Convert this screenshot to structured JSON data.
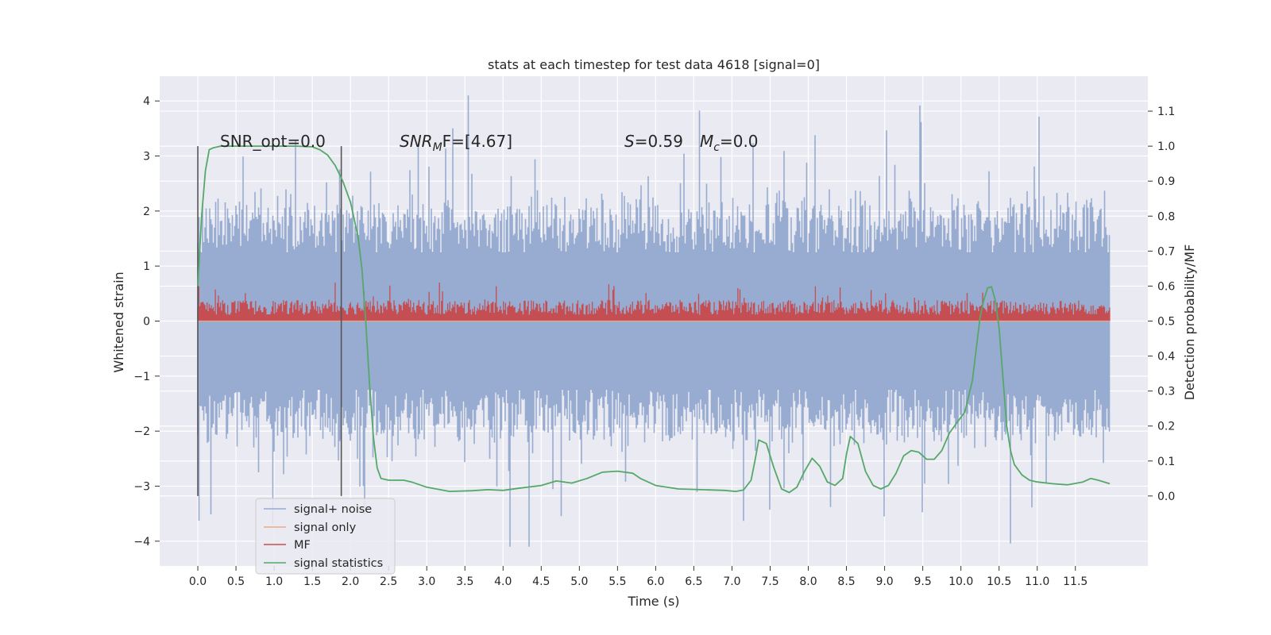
{
  "chart_data": {
    "type": "line",
    "title": "stats at each timestep for test data 4618 [signal=0]",
    "xlabel": "Time (s)",
    "ylabel_left": "Whitened strain",
    "ylabel_right": "Detection probability/MF",
    "xlim": [
      -0.5,
      12.45
    ],
    "ylim_left": [
      -4.45,
      4.45
    ],
    "ylim_right": [
      -0.2,
      1.2
    ],
    "x_ticks": [
      0.0,
      0.5,
      1.0,
      1.5,
      2.0,
      2.5,
      3.0,
      3.5,
      4.0,
      4.5,
      5.0,
      5.5,
      6.0,
      6.5,
      7.0,
      7.5,
      8.0,
      8.5,
      9.0,
      9.5,
      10.0,
      10.5,
      11.0,
      11.5
    ],
    "x_tick_labels": [
      "0.0",
      "0.5",
      "1.0",
      "1.5",
      "2.0",
      "2.5",
      "3.0",
      "3.5",
      "4.0",
      "4.5",
      "5.0",
      "5.5",
      "6.0",
      "6.5",
      "7.0",
      "7.5",
      "8.0",
      "8.5",
      "9.0",
      "9.5",
      "10.0",
      "10.5",
      "11.0",
      "11.5"
    ],
    "y_left_ticks": [
      -4,
      -3,
      -2,
      -1,
      0,
      1,
      2,
      3,
      4
    ],
    "y_left_tick_labels": [
      "−4",
      "−3",
      "−2",
      "−1",
      "0",
      "1",
      "2",
      "3",
      "4"
    ],
    "y_right_ticks": [
      0.0,
      0.1,
      0.2,
      0.3,
      0.4,
      0.5,
      0.6,
      0.7,
      0.8,
      0.9,
      1.0,
      1.1
    ],
    "y_right_tick_labels": [
      "0.0",
      "0.1",
      "0.2",
      "0.3",
      "0.4",
      "0.5",
      "0.6",
      "0.7",
      "0.8",
      "0.9",
      "1.0",
      "1.1"
    ],
    "grid": true,
    "legend_position": "lower-left",
    "annotations": {
      "snr_opt": "SNR_opt=0.0",
      "snr_mf_main": "SNR",
      "snr_mf_sub": "M",
      "snr_mf_rest": "F=[4.67]",
      "s_sym": "S",
      "s_rest": "=0.59",
      "mc_main": "M",
      "mc_sub": "c",
      "mc_rest": "=0.0"
    },
    "vertical_markers": [
      0.0,
      1.88
    ],
    "series": [
      {
        "name": "signal+ noise",
        "axis": "left",
        "color": "#98abd0",
        "description_kind": "noise-band",
        "t_range": [
          0.0,
          11.95
        ],
        "typical_range": [
          -2.0,
          2.0
        ],
        "extreme_range": [
          -4.1,
          4.1
        ]
      },
      {
        "name": "signal only",
        "axis": "left",
        "color": "#eaa987",
        "t": [
          0.0,
          11.95
        ],
        "values": [
          0.0,
          0.0
        ]
      },
      {
        "name": "MF",
        "axis": "right",
        "color": "#c44e52",
        "description_kind": "noise-band",
        "t_range": [
          0.0,
          11.95
        ],
        "typical_range": [
          0.5,
          0.56
        ],
        "extreme_range": [
          0.5,
          0.61
        ]
      },
      {
        "name": "signal statistics",
        "axis": "right",
        "color": "#55a868",
        "t": [
          0.0,
          0.05,
          0.1,
          0.15,
          0.2,
          0.3,
          0.5,
          0.8,
          1.0,
          1.3,
          1.5,
          1.6,
          1.7,
          1.8,
          1.9,
          2.0,
          2.1,
          2.15,
          2.2,
          2.25,
          2.3,
          2.35,
          2.4,
          2.5,
          2.7,
          2.8,
          3.0,
          3.3,
          3.6,
          3.8,
          4.0,
          4.2,
          4.5,
          4.7,
          4.9,
          5.1,
          5.3,
          5.5,
          5.7,
          5.8,
          6.0,
          6.3,
          6.6,
          6.9,
          7.05,
          7.15,
          7.25,
          7.3,
          7.35,
          7.45,
          7.55,
          7.65,
          7.75,
          7.85,
          7.95,
          8.05,
          8.15,
          8.25,
          8.35,
          8.45,
          8.5,
          8.55,
          8.65,
          8.75,
          8.85,
          8.95,
          9.05,
          9.15,
          9.25,
          9.35,
          9.45,
          9.55,
          9.65,
          9.75,
          9.85,
          9.95,
          10.05,
          10.15,
          10.2,
          10.25,
          10.3,
          10.35,
          10.4,
          10.45,
          10.5,
          10.55,
          10.6,
          10.65,
          10.7,
          10.8,
          10.9,
          11.0,
          11.2,
          11.4,
          11.6,
          11.7,
          11.8,
          11.95
        ],
        "values": [
          0.6,
          0.8,
          0.93,
          0.99,
          0.995,
          1.0,
          1.0,
          1.0,
          1.0,
          1.0,
          0.998,
          0.99,
          0.975,
          0.945,
          0.9,
          0.84,
          0.74,
          0.65,
          0.5,
          0.32,
          0.17,
          0.08,
          0.05,
          0.045,
          0.045,
          0.04,
          0.025,
          0.013,
          0.015,
          0.018,
          0.016,
          0.022,
          0.03,
          0.043,
          0.037,
          0.05,
          0.068,
          0.071,
          0.065,
          0.05,
          0.03,
          0.02,
          0.018,
          0.016,
          0.013,
          0.017,
          0.045,
          0.1,
          0.16,
          0.15,
          0.08,
          0.02,
          0.01,
          0.025,
          0.07,
          0.108,
          0.085,
          0.04,
          0.03,
          0.05,
          0.12,
          0.17,
          0.15,
          0.07,
          0.03,
          0.02,
          0.03,
          0.065,
          0.115,
          0.13,
          0.125,
          0.105,
          0.105,
          0.13,
          0.18,
          0.21,
          0.24,
          0.33,
          0.42,
          0.51,
          0.56,
          0.595,
          0.598,
          0.56,
          0.48,
          0.34,
          0.2,
          0.13,
          0.09,
          0.06,
          0.045,
          0.04,
          0.035,
          0.032,
          0.04,
          0.05,
          0.045,
          0.035
        ]
      }
    ]
  }
}
